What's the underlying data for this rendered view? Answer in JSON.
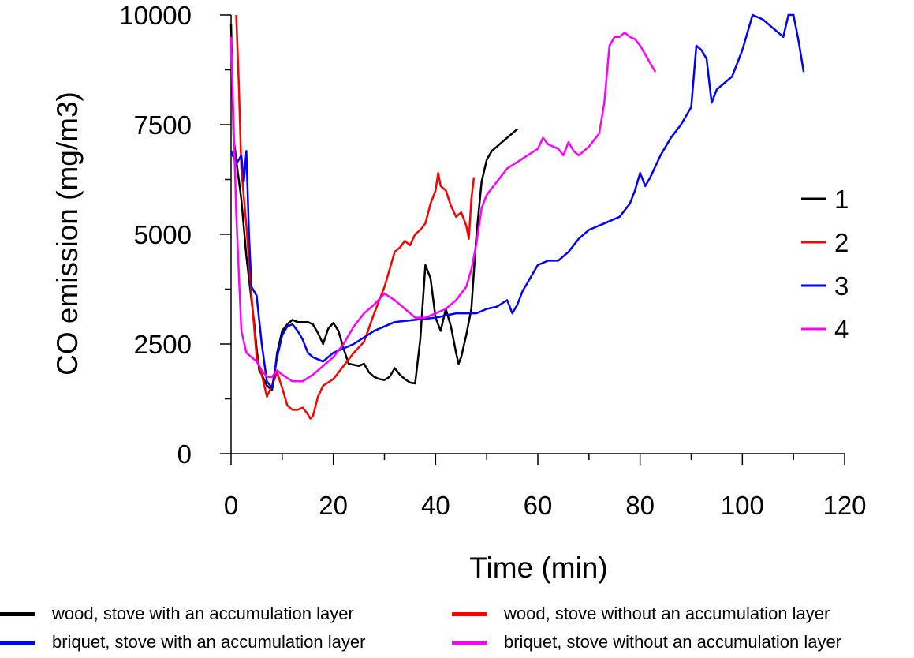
{
  "chart_data": {
    "type": "line",
    "xlabel": "Time (min)",
    "ylabel": "CO emission (mg/m3)",
    "xlim": [
      0,
      120
    ],
    "ylim": [
      0,
      10000
    ],
    "x_ticks": [
      0,
      20,
      40,
      60,
      80,
      100,
      120
    ],
    "y_ticks": [
      0,
      2500,
      5000,
      7500,
      10000
    ],
    "grid": false,
    "legend_position": "right",
    "series": [
      {
        "name": "1",
        "color": "#000000",
        "points": [
          [
            0,
            9800
          ],
          [
            0.5,
            7200
          ],
          [
            1,
            6700
          ],
          [
            2,
            5800
          ],
          [
            3,
            4500
          ],
          [
            4,
            3500
          ],
          [
            4.5,
            3000
          ],
          [
            5,
            2400
          ],
          [
            5.5,
            1900
          ],
          [
            6,
            1800
          ],
          [
            7,
            1550
          ],
          [
            8,
            1450
          ],
          [
            8.5,
            1800
          ],
          [
            9,
            2300
          ],
          [
            10,
            2800
          ],
          [
            11,
            2950
          ],
          [
            12,
            3050
          ],
          [
            13,
            3000
          ],
          [
            14,
            3000
          ],
          [
            15,
            3000
          ],
          [
            16,
            2950
          ],
          [
            17,
            2750
          ],
          [
            18,
            2500
          ],
          [
            19,
            2850
          ],
          [
            20,
            2980
          ],
          [
            21,
            2800
          ],
          [
            22,
            2400
          ],
          [
            23,
            2050
          ],
          [
            25,
            2000
          ],
          [
            26,
            2050
          ],
          [
            27,
            1850
          ],
          [
            28,
            1750
          ],
          [
            29,
            1700
          ],
          [
            30,
            1680
          ],
          [
            31,
            1750
          ],
          [
            32,
            1950
          ],
          [
            33,
            1800
          ],
          [
            34,
            1700
          ],
          [
            35,
            1620
          ],
          [
            36,
            1600
          ],
          [
            37,
            2600
          ],
          [
            38,
            4300
          ],
          [
            39,
            4000
          ],
          [
            40,
            3100
          ],
          [
            41,
            2800
          ],
          [
            42,
            3300
          ],
          [
            43,
            2900
          ],
          [
            44,
            2300
          ],
          [
            44.5,
            2050
          ],
          [
            45,
            2200
          ],
          [
            46,
            2700
          ],
          [
            47,
            3300
          ],
          [
            48,
            5000
          ],
          [
            49,
            6200
          ],
          [
            50,
            6700
          ],
          [
            51,
            6900
          ],
          [
            53,
            7100
          ],
          [
            55,
            7300
          ],
          [
            56,
            7400
          ]
        ]
      },
      {
        "name": "2",
        "color": "#ff0000",
        "points": [
          [
            1,
            10000
          ],
          [
            1.5,
            8500
          ],
          [
            2,
            6500
          ],
          [
            3,
            5200
          ],
          [
            4,
            3600
          ],
          [
            5,
            2200
          ],
          [
            6,
            1800
          ],
          [
            7,
            1300
          ],
          [
            8,
            1550
          ],
          [
            9,
            1850
          ],
          [
            10,
            1500
          ],
          [
            11,
            1100
          ],
          [
            12,
            1000
          ],
          [
            13,
            1000
          ],
          [
            14,
            1050
          ],
          [
            15,
            900
          ],
          [
            15.5,
            800
          ],
          [
            16,
            850
          ],
          [
            17,
            1300
          ],
          [
            18,
            1550
          ],
          [
            20,
            1700
          ],
          [
            22,
            2000
          ],
          [
            24,
            2300
          ],
          [
            26,
            2550
          ],
          [
            28,
            3200
          ],
          [
            30,
            3800
          ],
          [
            31,
            4200
          ],
          [
            32,
            4600
          ],
          [
            33,
            4700
          ],
          [
            34,
            4850
          ],
          [
            35,
            4750
          ],
          [
            36,
            5000
          ],
          [
            37,
            5100
          ],
          [
            38,
            5250
          ],
          [
            39,
            5700
          ],
          [
            40,
            6000
          ],
          [
            40.5,
            6400
          ],
          [
            41,
            6100
          ],
          [
            42,
            6000
          ],
          [
            43,
            5650
          ],
          [
            44,
            5400
          ],
          [
            45,
            5500
          ],
          [
            46,
            5200
          ],
          [
            46.5,
            4900
          ],
          [
            47,
            5800
          ],
          [
            47.5,
            6300
          ]
        ]
      },
      {
        "name": "3",
        "color": "#0000ff",
        "points": [
          [
            0,
            6900
          ],
          [
            1,
            6600
          ],
          [
            2,
            6800
          ],
          [
            2.5,
            6200
          ],
          [
            3,
            6900
          ],
          [
            3.5,
            5000
          ],
          [
            4,
            3800
          ],
          [
            5,
            3600
          ],
          [
            6,
            2500
          ],
          [
            7,
            1650
          ],
          [
            8,
            1500
          ],
          [
            9,
            2200
          ],
          [
            10,
            2700
          ],
          [
            11,
            2900
          ],
          [
            12,
            2950
          ],
          [
            13,
            2800
          ],
          [
            14,
            2600
          ],
          [
            15,
            2300
          ],
          [
            16,
            2200
          ],
          [
            18,
            2100
          ],
          [
            20,
            2300
          ],
          [
            24,
            2500
          ],
          [
            28,
            2800
          ],
          [
            32,
            3000
          ],
          [
            36,
            3050
          ],
          [
            40,
            3100
          ],
          [
            44,
            3200
          ],
          [
            48,
            3200
          ],
          [
            50,
            3300
          ],
          [
            52,
            3350
          ],
          [
            54,
            3500
          ],
          [
            55,
            3200
          ],
          [
            56,
            3400
          ],
          [
            57,
            3700
          ],
          [
            58,
            3900
          ],
          [
            59,
            4100
          ],
          [
            60,
            4300
          ],
          [
            62,
            4400
          ],
          [
            64,
            4400
          ],
          [
            66,
            4600
          ],
          [
            68,
            4900
          ],
          [
            70,
            5100
          ],
          [
            72,
            5200
          ],
          [
            74,
            5300
          ],
          [
            76,
            5400
          ],
          [
            78,
            5700
          ],
          [
            79,
            6000
          ],
          [
            80,
            6400
          ],
          [
            81,
            6100
          ],
          [
            82,
            6300
          ],
          [
            84,
            6800
          ],
          [
            86,
            7200
          ],
          [
            88,
            7500
          ],
          [
            90,
            7900
          ],
          [
            91,
            9300
          ],
          [
            92,
            9200
          ],
          [
            93,
            9000
          ],
          [
            94,
            8000
          ],
          [
            95,
            8300
          ],
          [
            96,
            8400
          ],
          [
            98,
            8600
          ],
          [
            100,
            9200
          ],
          [
            102,
            10000
          ],
          [
            104,
            9900
          ],
          [
            106,
            9700
          ],
          [
            108,
            9500
          ],
          [
            109,
            10000
          ],
          [
            110,
            10000
          ],
          [
            111,
            9400
          ],
          [
            112,
            8700
          ]
        ]
      },
      {
        "name": "4",
        "color": "#ff00ff",
        "points": [
          [
            0,
            9500
          ],
          [
            1,
            5500
          ],
          [
            2,
            2800
          ],
          [
            3,
            2300
          ],
          [
            4,
            2200
          ],
          [
            5,
            2100
          ],
          [
            6,
            1900
          ],
          [
            7,
            1750
          ],
          [
            8,
            1750
          ],
          [
            9,
            1900
          ],
          [
            10,
            1800
          ],
          [
            12,
            1650
          ],
          [
            14,
            1650
          ],
          [
            16,
            1800
          ],
          [
            18,
            2000
          ],
          [
            20,
            2200
          ],
          [
            22,
            2500
          ],
          [
            24,
            2900
          ],
          [
            26,
            3200
          ],
          [
            28,
            3400
          ],
          [
            30,
            3650
          ],
          [
            32,
            3500
          ],
          [
            34,
            3300
          ],
          [
            36,
            3100
          ],
          [
            38,
            3100
          ],
          [
            40,
            3200
          ],
          [
            42,
            3300
          ],
          [
            44,
            3500
          ],
          [
            46,
            3800
          ],
          [
            47,
            4200
          ],
          [
            48,
            4800
          ],
          [
            49,
            5600
          ],
          [
            50,
            5900
          ],
          [
            52,
            6200
          ],
          [
            54,
            6500
          ],
          [
            56,
            6650
          ],
          [
            58,
            6800
          ],
          [
            60,
            6950
          ],
          [
            61,
            7200
          ],
          [
            62,
            7050
          ],
          [
            63,
            7000
          ],
          [
            64,
            6950
          ],
          [
            65,
            6800
          ],
          [
            66,
            7100
          ],
          [
            67,
            6900
          ],
          [
            68,
            6800
          ],
          [
            70,
            7000
          ],
          [
            72,
            7300
          ],
          [
            73,
            8000
          ],
          [
            74,
            9300
          ],
          [
            75,
            9500
          ],
          [
            76,
            9500
          ],
          [
            77,
            9600
          ],
          [
            78,
            9500
          ],
          [
            79,
            9450
          ],
          [
            80,
            9300
          ],
          [
            81,
            9100
          ],
          [
            82,
            8900
          ],
          [
            83,
            8700
          ]
        ]
      }
    ]
  },
  "bottom_legend": [
    {
      "label": "wood, stove with an accumulation layer",
      "color": "#000000"
    },
    {
      "label": "wood, stove without an accumulation layer",
      "color": "#ff0000"
    },
    {
      "label": "briquet, stove with an accumulation layer",
      "color": "#0000ff"
    },
    {
      "label": "briquet, stove without an accumulation layer",
      "color": "#ff00ff"
    }
  ]
}
